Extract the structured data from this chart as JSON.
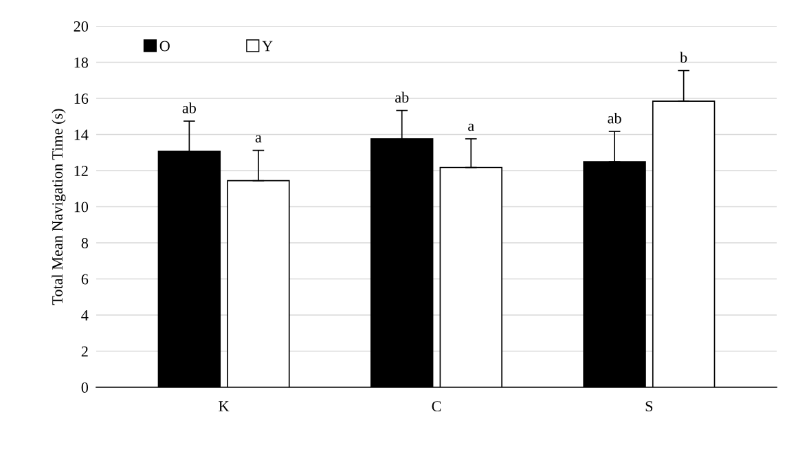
{
  "chart_data": {
    "type": "bar",
    "ylabel": "Total Mean Navigation Time (s)",
    "categories": [
      "K",
      "C",
      "S"
    ],
    "series": [
      {
        "name": "O",
        "color": "#000000",
        "values": [
          13.07,
          13.76,
          12.49
        ],
        "errors": [
          1.67,
          1.57,
          1.68
        ]
      },
      {
        "name": "Y",
        "color": "#ffffff",
        "values": [
          11.44,
          12.17,
          15.84
        ],
        "errors": [
          1.68,
          1.59,
          1.7
        ]
      }
    ],
    "ylim": [
      0,
      20
    ],
    "yticks": [
      0,
      2,
      4,
      6,
      8,
      10,
      12,
      14,
      16,
      18,
      20
    ],
    "grid": "y",
    "legend": "top left",
    "annotations": [
      "ab",
      "a",
      "ab",
      "a",
      "ab",
      "b"
    ]
  }
}
